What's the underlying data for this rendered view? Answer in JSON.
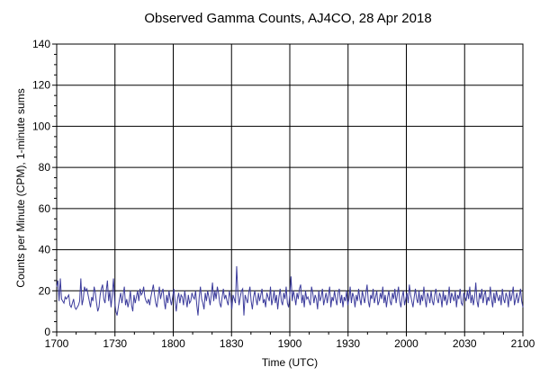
{
  "chart_data": {
    "type": "line",
    "title": "Observed Gamma Counts, AJ4CO, 28 Apr 2018",
    "xlabel": "Time (UTC)",
    "ylabel": "Counts per Minute (CPM), 1-minute sums",
    "xlim_minutes_label": [
      "1700",
      "2100"
    ],
    "ylim": [
      0,
      140
    ],
    "x_tick_labels": [
      "1700",
      "1730",
      "1800",
      "1830",
      "1900",
      "1930",
      "2000",
      "2030",
      "2100"
    ],
    "y_ticks": [
      0,
      20,
      40,
      60,
      80,
      100,
      120,
      140
    ],
    "grid": true,
    "series": [
      {
        "color": "#3c3c9c",
        "sample_interval_minutes": 1,
        "start_time": "1700",
        "values": [
          22,
          25,
          15,
          26,
          16,
          15,
          14,
          17,
          16,
          17,
          18,
          13,
          12,
          14,
          16,
          12,
          11,
          12,
          13,
          15,
          26,
          13,
          16,
          22,
          20,
          21,
          18,
          15,
          12,
          17,
          15,
          22,
          19,
          14,
          10,
          12,
          18,
          21,
          23,
          16,
          14,
          20,
          25,
          15,
          20,
          12,
          18,
          26,
          15,
          10,
          8,
          12,
          16,
          19,
          14,
          18,
          22,
          13,
          16,
          12,
          15,
          20,
          13,
          10,
          18,
          14,
          17,
          20,
          15,
          21,
          18,
          19,
          22,
          17,
          15,
          14,
          16,
          13,
          17,
          20,
          23,
          18,
          14,
          12,
          17,
          22,
          16,
          19,
          21,
          15,
          11,
          18,
          14,
          20,
          16,
          13,
          17,
          21,
          15,
          10,
          16,
          19,
          14,
          18,
          17,
          13,
          20,
          16,
          12,
          18,
          14,
          15,
          19,
          17,
          16,
          20,
          13,
          8,
          17,
          22,
          16,
          14,
          11,
          19,
          15,
          20,
          17,
          13,
          18,
          24,
          15,
          20,
          16,
          22,
          19,
          14,
          12,
          17,
          21,
          16,
          18,
          15,
          13,
          20,
          17,
          11,
          18,
          16,
          14,
          32,
          19,
          13,
          17,
          20,
          21,
          8,
          18,
          16,
          14,
          19,
          22,
          15,
          11,
          17,
          20,
          16,
          13,
          19,
          15,
          18,
          21,
          14,
          16,
          12,
          19,
          17,
          15,
          22,
          13,
          16,
          20,
          14,
          18,
          11,
          17,
          21,
          15,
          13,
          19,
          16,
          22,
          14,
          12,
          18,
          27,
          15,
          20,
          17,
          13,
          19,
          16,
          21,
          23,
          14,
          18,
          12,
          20,
          16,
          17,
          15,
          13,
          22,
          19,
          14,
          18,
          16,
          11,
          20,
          15,
          17,
          21,
          13,
          16,
          19,
          14,
          18,
          22,
          12,
          17,
          15,
          20,
          16,
          13,
          19,
          21,
          14,
          18,
          12,
          17,
          15,
          20,
          13,
          16,
          22,
          14,
          19,
          17,
          12,
          18,
          15,
          21,
          16,
          13,
          20,
          17,
          14,
          19,
          23,
          15,
          12,
          18,
          16,
          21,
          14,
          17,
          20,
          13,
          15,
          19,
          16,
          22,
          14,
          18,
          12,
          17,
          20,
          15,
          13,
          19,
          16,
          21,
          14,
          18,
          22,
          15,
          12,
          17,
          20,
          13,
          16,
          19,
          14,
          23,
          18,
          15,
          12,
          17,
          21,
          16,
          14,
          20,
          13,
          18,
          15,
          22,
          16,
          12,
          19,
          17,
          14,
          20,
          15,
          13,
          18,
          21,
          16,
          14,
          19,
          17,
          12,
          20,
          15,
          18,
          13,
          16,
          22,
          14,
          19,
          17,
          15,
          20,
          12,
          18,
          16,
          21,
          14,
          13,
          19,
          17,
          15,
          20,
          16,
          22,
          14,
          18,
          13,
          17,
          24,
          15,
          12,
          19,
          16,
          21,
          14,
          18,
          20,
          13,
          17,
          15,
          22,
          16,
          12,
          19,
          14,
          20,
          17,
          15,
          18,
          13,
          21,
          16,
          14,
          19,
          17,
          12,
          20,
          15,
          18,
          22,
          13,
          16,
          19,
          14,
          17,
          21,
          15,
          12
        ]
      }
    ]
  }
}
